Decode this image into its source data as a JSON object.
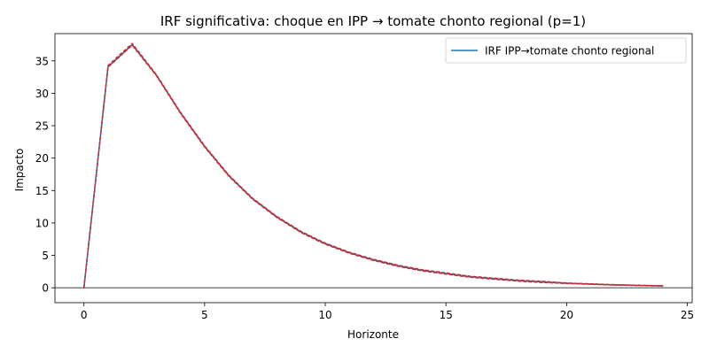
{
  "chart_data": {
    "type": "line",
    "title": "IRF significativa: choque en IPP → tomate chonto regional (p=1)",
    "xlabel": "Horizonte",
    "ylabel": "Impacto",
    "xlim": [
      -1.2,
      25.2
    ],
    "ylim": [
      -2.3,
      39.2
    ],
    "x_ticks": [
      0,
      5,
      10,
      15,
      20,
      25
    ],
    "y_ticks": [
      0,
      5,
      10,
      15,
      20,
      25,
      30,
      35
    ],
    "grid": false,
    "legend_position": "top-right",
    "zero_line": true,
    "x": [
      0,
      1,
      2,
      3,
      4,
      5,
      6,
      7,
      8,
      9,
      10,
      11,
      12,
      13,
      14,
      15,
      16,
      17,
      18,
      19,
      20,
      21,
      22,
      23,
      24
    ],
    "series": [
      {
        "name": "IRF IPP→tomate chonto regional",
        "color": "#1f77b4",
        "values": [
          0.0,
          34.1,
          37.5,
          32.8,
          27.0,
          21.8,
          17.3,
          13.7,
          10.9,
          8.6,
          6.8,
          5.4,
          4.3,
          3.4,
          2.7,
          2.2,
          1.7,
          1.4,
          1.1,
          0.9,
          0.7,
          0.57,
          0.45,
          0.36,
          0.28
        ]
      },
      {
        "color": "#d62728",
        "style": "dashed",
        "values": [
          0.0,
          34.0,
          37.4,
          32.7,
          26.9,
          21.7,
          17.2,
          13.6,
          10.8,
          8.5,
          6.7,
          5.3,
          4.2,
          3.3,
          2.6,
          2.1,
          1.6,
          1.3,
          1.0,
          0.8,
          0.65,
          0.52,
          0.41,
          0.32,
          0.25
        ]
      },
      {
        "color": "#d62728",
        "style": "dashed",
        "values": [
          0.0,
          34.3,
          37.7,
          32.9,
          27.1,
          21.9,
          17.4,
          13.8,
          11.0,
          8.7,
          6.9,
          5.5,
          4.4,
          3.5,
          2.8,
          2.3,
          1.8,
          1.5,
          1.2,
          1.0,
          0.75,
          0.62,
          0.49,
          0.4,
          0.31
        ]
      }
    ]
  }
}
